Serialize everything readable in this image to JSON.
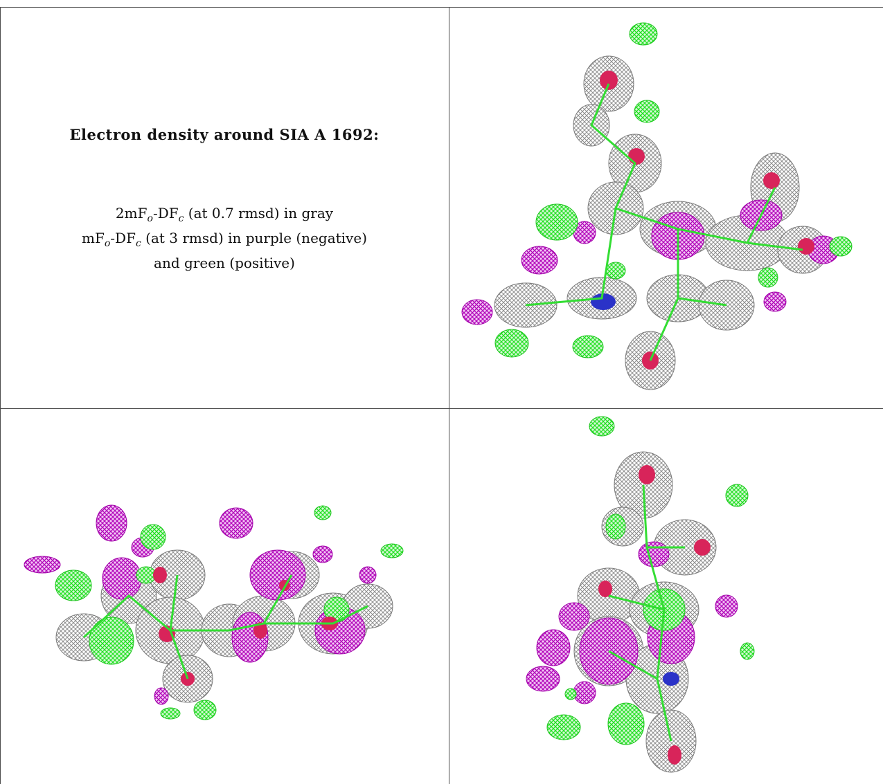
{
  "legend": {
    "title": "Electron density around SIA A 1692:",
    "line1": {
      "pre": "2mF",
      "sub1": "o",
      "mid": "-DF",
      "sub2": "c",
      "post": " (at 0.7 rmsd) in gray"
    },
    "line2": {
      "pre": "mF",
      "sub1": "o",
      "mid": "-DF",
      "sub2": "c",
      "post": " (at 3 rmsd) in purple (negative)"
    },
    "line3": "and green (positive)"
  },
  "views": [
    {
      "name": "view-top-right"
    },
    {
      "name": "view-bottom-left"
    },
    {
      "name": "view-bottom-right"
    }
  ],
  "colors": {
    "mesh_gray": "#9a9a9a",
    "mesh_negative": "#b000b8",
    "mesh_positive": "#22e022",
    "oxygen": "#d8245a",
    "nitrogen": "#2a32c8",
    "grid_line": "#4a4a4a"
  }
}
